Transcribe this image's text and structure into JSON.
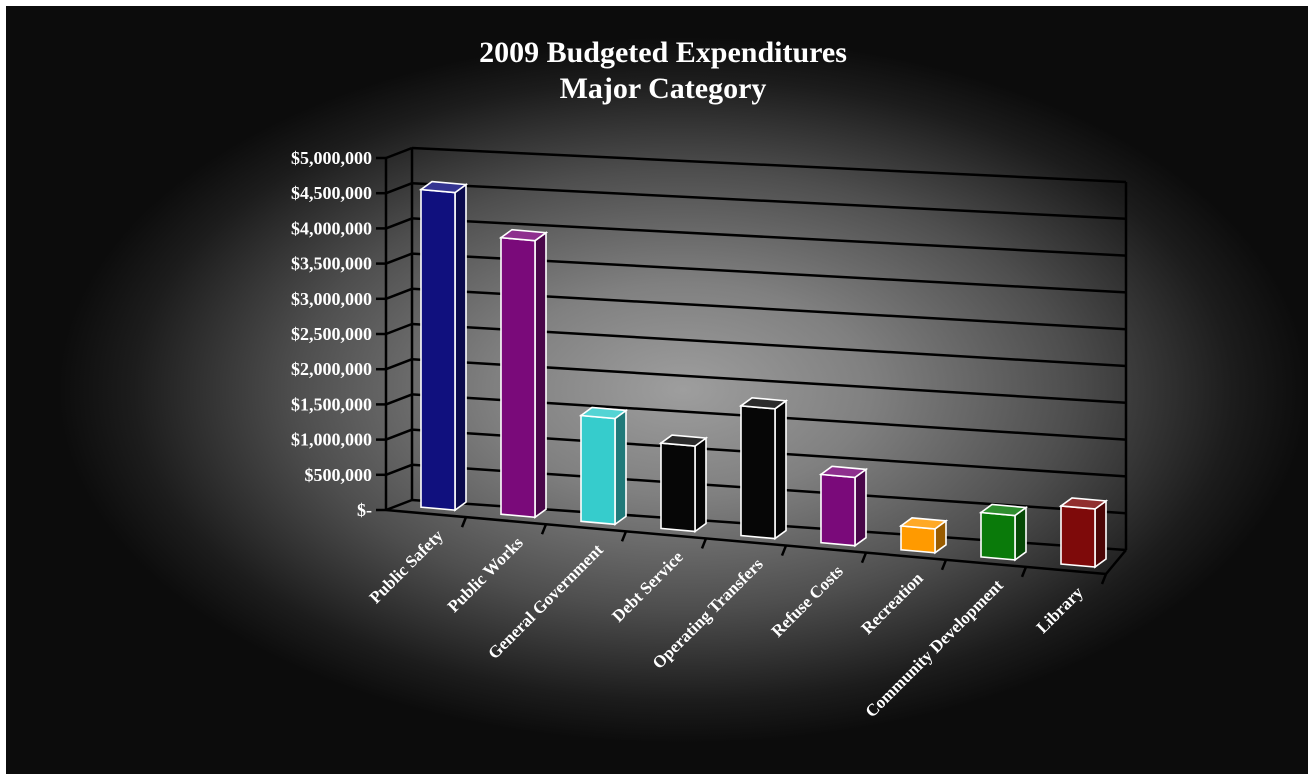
{
  "chart_data": {
    "type": "bar",
    "title": "2009 Budgeted Expenditures",
    "subtitle": "Major Category",
    "categories": [
      "Public Safety",
      "Public Works",
      "General Government",
      "Debt Service",
      "Operating Transfers",
      "Refuse Costs",
      "Recreation",
      "Community Development",
      "Library"
    ],
    "values": [
      4650000,
      4050000,
      1550000,
      1250000,
      1900000,
      1000000,
      350000,
      650000,
      850000
    ],
    "colors": [
      "#10107e",
      "#7a0a7a",
      "#36cccc",
      "#060606",
      "#060606",
      "#7a0a7a",
      "#ff9a00",
      "#0a7a0a",
      "#7e0a0a"
    ],
    "ylim": [
      0,
      5000000
    ],
    "yticks": [
      0,
      500000,
      1000000,
      1500000,
      2000000,
      2500000,
      3000000,
      3500000,
      4000000,
      4500000,
      5000000
    ],
    "ytick_labels": [
      "$-",
      "$500,000",
      "$1,000,000",
      "$1,500,000",
      "$2,000,000",
      "$2,500,000",
      "$3,000,000",
      "$3,500,000",
      "$4,000,000",
      "$4,500,000",
      "$5,000,000"
    ],
    "grid": true,
    "xlabel": "",
    "ylabel": "",
    "style": "3d-perspective"
  }
}
